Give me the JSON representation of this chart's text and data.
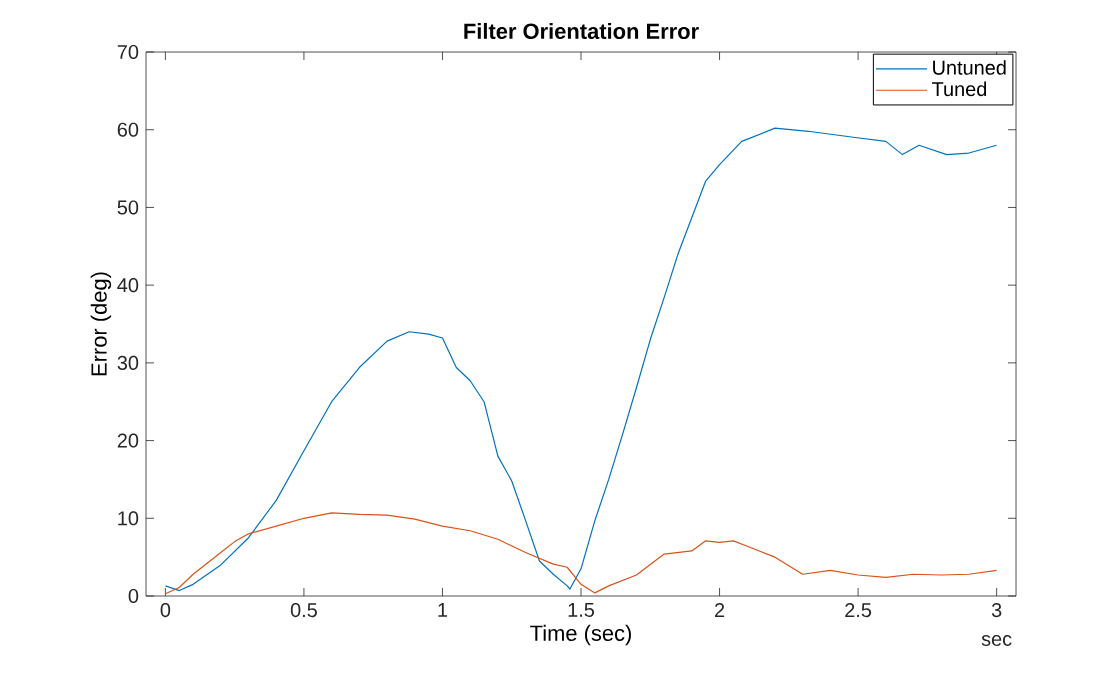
{
  "chart_data": {
    "type": "line",
    "title": "Filter Orientation Error",
    "xlabel": "Time (sec)",
    "ylabel": "Error (deg)",
    "annotations": [
      "sec"
    ],
    "series": [
      {
        "name": "Untuned",
        "color": "#0072bd",
        "x": [
          0,
          0.05,
          0.1,
          0.2,
          0.3,
          0.4,
          0.5,
          0.6,
          0.7,
          0.8,
          0.88,
          0.95,
          1.0,
          1.05,
          1.1,
          1.15,
          1.2,
          1.25,
          1.3,
          1.35,
          1.4,
          1.45,
          1.46,
          1.5,
          1.55,
          1.6,
          1.65,
          1.7,
          1.75,
          1.8,
          1.85,
          1.9,
          1.95,
          2.0,
          2.08,
          2.2,
          2.32,
          2.49,
          2.6,
          2.66,
          2.72,
          2.82,
          2.9,
          3.0
        ],
        "values": [
          1.3,
          0.7,
          1.5,
          4,
          7.5,
          12.3,
          18.7,
          25,
          29.4,
          32.8,
          34,
          33.7,
          33.2,
          29.4,
          27.7,
          25,
          18,
          14.8,
          9.7,
          4.5,
          2.8,
          1.3,
          0.9,
          3.5,
          9.7,
          15,
          20.8,
          26.8,
          33,
          38.4,
          44,
          48.7,
          53.4,
          55.5,
          58.5,
          60.2,
          59.8,
          59,
          58.5,
          56.8,
          58,
          56.8,
          57,
          58
        ]
      },
      {
        "name": "Tuned",
        "color": "#d95319",
        "x": [
          0,
          0.05,
          0.1,
          0.2,
          0.25,
          0.3,
          0.4,
          0.5,
          0.6,
          0.7,
          0.8,
          0.9,
          1.0,
          1.1,
          1.2,
          1.3,
          1.4,
          1.45,
          1.5,
          1.55,
          1.6,
          1.7,
          1.8,
          1.9,
          1.95,
          2.0,
          2.05,
          2.1,
          2.2,
          2.3,
          2.4,
          2.5,
          2.6,
          2.7,
          2.8,
          2.9,
          3.0
        ],
        "values": [
          0.3,
          1.1,
          2.8,
          5.6,
          7,
          8,
          9,
          10,
          10.7,
          10.5,
          10.4,
          9.9,
          9,
          8.4,
          7.3,
          5.6,
          4.1,
          3.7,
          1.5,
          0.4,
          1.3,
          2.7,
          5.4,
          5.8,
          7.1,
          6.9,
          7.1,
          6.4,
          5,
          2.8,
          3.3,
          2.7,
          2.4,
          2.8,
          2.7,
          2.8,
          3.3
        ]
      }
    ],
    "xlim": [
      -0.07,
      3.07
    ],
    "ylim": [
      0,
      70
    ],
    "xticks": [
      0,
      0.5,
      1,
      1.5,
      2,
      2.5,
      3
    ],
    "yticks": [
      0,
      10,
      20,
      30,
      40,
      50,
      60,
      70
    ],
    "legend": "top right",
    "grid": false,
    "marker": "none",
    "line_style": "solid"
  }
}
